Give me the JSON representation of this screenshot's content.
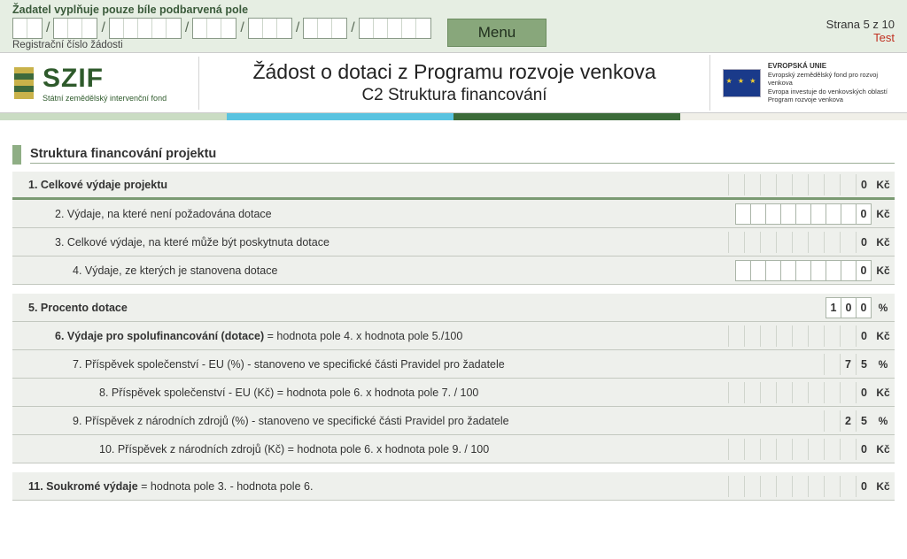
{
  "top": {
    "note": "Žadatel vyplňuje pouze bíle podbarvená pole",
    "reg_groups": [
      2,
      3,
      5,
      3,
      3,
      3,
      5
    ],
    "reg_label": "Registrační číslo žádosti",
    "menu": "Menu",
    "page_info": "Strana 5 z 10",
    "test": "Test"
  },
  "banner": {
    "szif_big": "SZIF",
    "szif_small": "Státní zemědělský intervenční fond",
    "title1": "Žádost o dotaci z Programu rozvoje venkova",
    "title2": "C2 Struktura financování",
    "eu_title": "EVROPSKÁ UNIE",
    "eu_l1": "Evropský zemědělský fond pro rozvoj venkova",
    "eu_l2": "Evropa investuje do venkovských oblastí",
    "eu_l3": "Program rozvoje venkova"
  },
  "accent_colors": [
    "#cadcc3",
    "#59c3e0",
    "#3c6b39",
    "#f0efe8"
  ],
  "section_title": "Struktura financování projektu",
  "rows": [
    {
      "indent": 0,
      "bold": true,
      "thick": true,
      "label": "1. Celkové výdaje projektu",
      "value_cells": [
        "",
        "",
        "",
        "",
        "",
        "",
        "",
        "",
        "0"
      ],
      "unit": "Kč",
      "white": false
    },
    {
      "indent": 1,
      "bold": false,
      "thick": false,
      "label": "2. Výdaje, na které není požadována dotace",
      "value_cells": [
        "",
        "",
        "",
        "",
        "",
        "",
        "",
        "",
        "0"
      ],
      "unit": "Kč",
      "white": true
    },
    {
      "indent": 1,
      "bold": false,
      "thick": false,
      "label": "3. Celkové výdaje, na které může být poskytnuta dotace",
      "value_cells": [
        "",
        "",
        "",
        "",
        "",
        "",
        "",
        "",
        "0"
      ],
      "unit": "Kč",
      "white": false
    },
    {
      "indent": 2,
      "bold": false,
      "thick": false,
      "label": "4. Výdaje, ze kterých je stanovena dotace",
      "value_cells": [
        "",
        "",
        "",
        "",
        "",
        "",
        "",
        "",
        "0"
      ],
      "unit": "Kč",
      "white": true
    },
    {
      "gap": true
    },
    {
      "indent": 0,
      "bold": true,
      "thick": false,
      "label": "5. Procento dotace",
      "sub": "",
      "value_cells": [
        "1",
        "0",
        "0"
      ],
      "unit": "%",
      "white": true,
      "short": true
    },
    {
      "indent": 1,
      "bold": true,
      "thick": false,
      "label": "6. Výdaje pro spolufinancování (dotace)",
      "sub": " = hodnota pole 4. x hodnota pole 5./100",
      "value_cells": [
        "",
        "",
        "",
        "",
        "",
        "",
        "",
        "",
        "0"
      ],
      "unit": "Kč",
      "white": false
    },
    {
      "indent": 2,
      "bold": false,
      "thick": false,
      "label": "7. Příspěvek společenství - EU (%) - stanoveno ve specifické části Pravidel pro žadatele",
      "value_cells": [
        "",
        "7",
        "5"
      ],
      "unit": "%",
      "white": false,
      "short": true
    },
    {
      "indent": 3,
      "bold": false,
      "thick": false,
      "label": "8. Příspěvek společenství - EU (Kč) = hodnota pole 6. x hodnota pole 7. / 100",
      "value_cells": [
        "",
        "",
        "",
        "",
        "",
        "",
        "",
        "",
        "0"
      ],
      "unit": "Kč",
      "white": false
    },
    {
      "indent": 2,
      "bold": false,
      "thick": false,
      "label": "9. Příspěvek z národních zdrojů (%)  - stanoveno ve specifické části Pravidel pro žadatele",
      "value_cells": [
        "",
        "2",
        "5"
      ],
      "unit": "%",
      "white": false,
      "short": true
    },
    {
      "indent": 3,
      "bold": false,
      "thick": false,
      "label": "10. Příspěvek z národních zdrojů (Kč) = hodnota pole 6. x hodnota pole 9. / 100",
      "value_cells": [
        "",
        "",
        "",
        "",
        "",
        "",
        "",
        "",
        "0"
      ],
      "unit": "Kč",
      "white": false
    },
    {
      "gap": true
    },
    {
      "indent": 0,
      "bold": true,
      "thick": false,
      "label": "11. Soukromé výdaje",
      "sub": " = hodnota pole 3. - hodnota pole 6.",
      "value_cells": [
        "",
        "",
        "",
        "",
        "",
        "",
        "",
        "",
        "0"
      ],
      "unit": "Kč",
      "white": false
    }
  ]
}
